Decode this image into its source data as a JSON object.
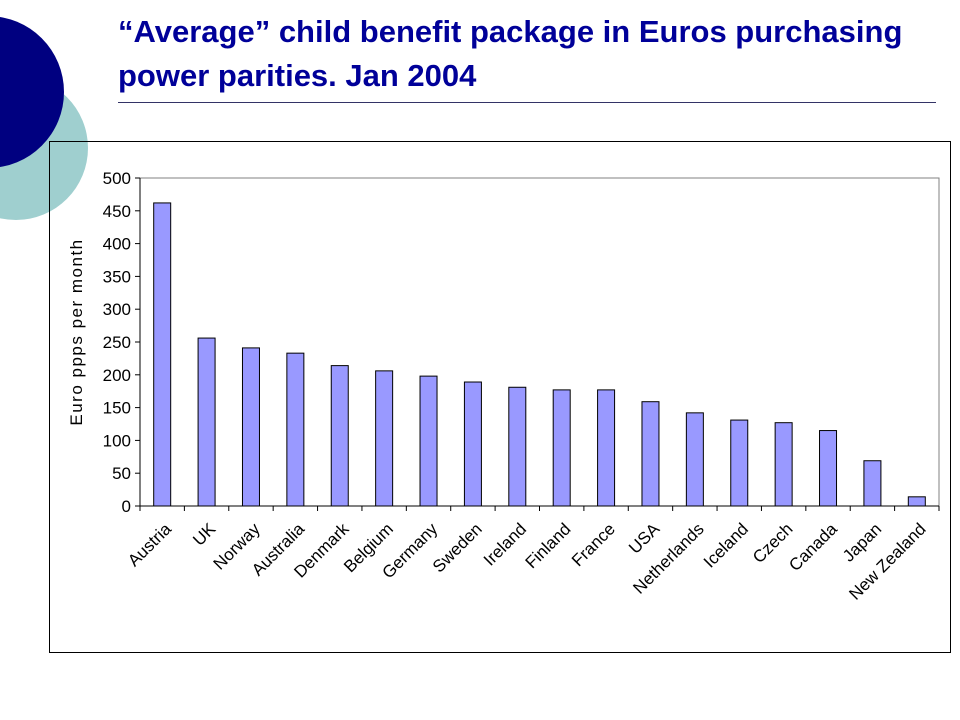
{
  "slide": {
    "title": "“Average” child benefit package in Euros purchasing power parities. Jan 2004"
  },
  "colors": {
    "title": "#000099",
    "circle_dark": "#000080",
    "circle_light": "#9fcfcf",
    "bar_fill": "#9999ff",
    "bar_stroke": "#000000"
  },
  "chart_data": {
    "type": "bar",
    "title": "",
    "xlabel": "",
    "ylabel": "Euro ppps per month",
    "ylim": [
      0,
      500
    ],
    "yticks": [
      0,
      50,
      100,
      150,
      200,
      250,
      300,
      350,
      400,
      450,
      500
    ],
    "grid": false,
    "legend": "none",
    "categories": [
      "Austria",
      "UK",
      "Norway",
      "Australia",
      "Denmark",
      "Belgium",
      "Germany",
      "Sweden",
      "Ireland",
      "Finland",
      "France",
      "USA",
      "Netherlands",
      "Iceland",
      "Czech",
      "Canada",
      "Japan",
      "New Zealand"
    ],
    "values": [
      462,
      256,
      241,
      233,
      214,
      206,
      198,
      189,
      181,
      177,
      177,
      159,
      142,
      131,
      127,
      115,
      69,
      14
    ]
  }
}
